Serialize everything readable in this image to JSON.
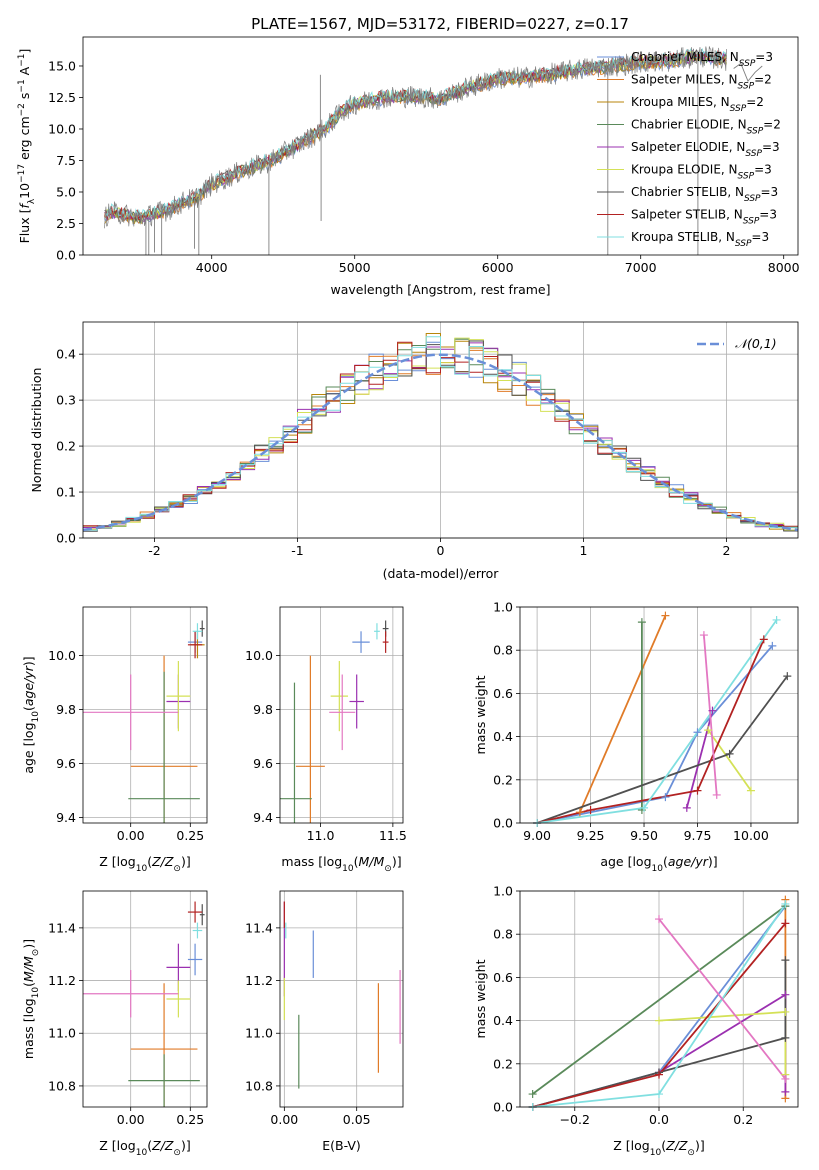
{
  "figure_title": "PLATE=1567, MJD=53172, FIBERID=0227, z=0.17",
  "models": [
    {
      "name": "Chabrier MILES",
      "nssp": "3",
      "color": "#6a8fd8"
    },
    {
      "name": "Salpeter MILES",
      "nssp": "2",
      "color": "#e07b28"
    },
    {
      "name": "Kroupa MILES",
      "nssp": "2",
      "color": "#b8860b"
    },
    {
      "name": "Chabrier ELODIE",
      "nssp": "2",
      "color": "#5a8a5a"
    },
    {
      "name": "Salpeter ELODIE",
      "nssp": "3",
      "color": "#9b30b0"
    },
    {
      "name": "Kroupa ELODIE",
      "nssp": "3",
      "color": "#d4e157"
    },
    {
      "name": "Chabrier STELIB",
      "nssp": "3",
      "color": "#505050"
    },
    {
      "name": "Salpeter STELIB",
      "nssp": "3",
      "color": "#b22222"
    },
    {
      "name": "Kroupa STELIB",
      "nssp": "3",
      "color": "#80dfe0"
    }
  ],
  "chart_data": [
    {
      "id": "spectrum",
      "type": "line",
      "xlabel": "wavelength [Angstrom, rest frame]",
      "ylabel": "Flux [f_λ 10^-17 erg cm^-2 s^-1 A^-1]",
      "xlim": [
        3100,
        8100
      ],
      "ylim": [
        0,
        17.3
      ],
      "xticks": [
        4000,
        5000,
        6000,
        7000,
        8000
      ],
      "yticks": [
        0.0,
        2.5,
        5.0,
        7.5,
        10.0,
        12.5,
        15.0
      ],
      "grid": false,
      "legend": "right",
      "data_color": "#808080",
      "continuum": {
        "x": [
          3250,
          3300,
          3400,
          3500,
          3600,
          3700,
          3800,
          3900,
          4000,
          4200,
          4400,
          4600,
          4800,
          4900,
          5000,
          5200,
          5400,
          5600,
          5800,
          6000,
          6200,
          6400,
          6600,
          6800,
          7000,
          7200,
          7400,
          7600
        ],
        "y": [
          3.0,
          3.4,
          3.2,
          2.9,
          3.3,
          3.6,
          4.2,
          4.6,
          5.6,
          6.6,
          7.4,
          8.7,
          10.1,
          11.3,
          12.0,
          12.5,
          12.6,
          12.4,
          13.3,
          14.0,
          14.1,
          14.4,
          14.8,
          15.0,
          15.3,
          15.4,
          15.8,
          15.5
        ]
      },
      "spikes": [
        {
          "x": 3540,
          "y": 0.0
        },
        {
          "x": 3560,
          "y": 0.0
        },
        {
          "x": 3600,
          "y": 0.2
        },
        {
          "x": 3650,
          "y": 0.0
        },
        {
          "x": 3880,
          "y": 0.5
        },
        {
          "x": 3910,
          "y": 0.0
        },
        {
          "x": 4400,
          "y": 0.0
        },
        {
          "x": 4760,
          "y": 14.3
        },
        {
          "x": 4765,
          "y": 2.7
        },
        {
          "x": 6770,
          "y": 0.0
        },
        {
          "x": 7400,
          "y": 0.0
        }
      ],
      "tail": {
        "x": [
          7650,
          7700,
          7750,
          7800,
          7850
        ],
        "y": [
          14.8,
          15.2,
          13.8,
          14.5,
          15.0
        ]
      }
    },
    {
      "id": "residuals",
      "type": "bar",
      "xlabel": "(data-model)/error",
      "ylabel": "Normed distribution",
      "xlim": [
        -2.5,
        2.5
      ],
      "ylim": [
        0,
        0.47
      ],
      "xticks": [
        -2,
        -1,
        0,
        1,
        2
      ],
      "yticks": [
        0.0,
        0.1,
        0.2,
        0.3,
        0.4
      ],
      "grid": true,
      "legend": "top-right",
      "reference_curve": {
        "name": "𝒩(0,1)",
        "style": "dashed",
        "color": "#6a8fd8",
        "mu": 0,
        "sigma": 1
      },
      "bin_width": 0.1
    },
    {
      "id": "age_vs_Z",
      "type": "scatter",
      "xlabel": "Z [log10(Z/Z⊙)]",
      "ylabel": "age  [log10(age/yr)]",
      "xlim": [
        -0.2,
        0.32
      ],
      "ylim": [
        9.38,
        10.18
      ],
      "xticks": [
        0.0,
        0.25
      ],
      "xtick_labels": [
        "0.00",
        "0.25"
      ],
      "yticks": [
        9.4,
        9.6,
        9.8,
        10.0
      ],
      "grid": true,
      "points": [
        {
          "model": 0,
          "x": 0.27,
          "y": 10.05,
          "xerr": 0.03,
          "yerr": 0.04
        },
        {
          "model": 1,
          "x": 0.14,
          "y": 9.59,
          "xerr": 0.14,
          "yerr": 0.41
        },
        {
          "model": 2,
          "x": 0.28,
          "y": 10.04,
          "xerr": 0.03,
          "yerr": 0.05
        },
        {
          "model": 3,
          "x": 0.14,
          "y": 9.47,
          "xerr": 0.15,
          "yerr": 0.47
        },
        {
          "model": 4,
          "x": 0.2,
          "y": 9.83,
          "xerr": 0.05,
          "yerr": 0.1
        },
        {
          "model": 5,
          "x": 0.2,
          "y": 9.85,
          "xerr": 0.05,
          "yerr": 0.13
        },
        {
          "model": 6,
          "x": 0.3,
          "y": 10.1,
          "xerr": 0.01,
          "yerr": 0.03
        },
        {
          "model": 7,
          "x": 0.27,
          "y": 10.04,
          "xerr": 0.03,
          "yerr": 0.05
        },
        {
          "model": 8,
          "x": 0.28,
          "y": 10.09,
          "xerr": 0.02,
          "yerr": 0.03
        },
        {
          "model": 2,
          "x": 0.0,
          "y": 9.79,
          "xerr": 0.2,
          "yerr": 0.14,
          "color": "#e377c2"
        }
      ]
    },
    {
      "id": "age_vs_mass",
      "type": "scatter",
      "xlabel": "mass [log10(M/M⊙)]",
      "ylabel": "",
      "xlim": [
        10.72,
        11.57
      ],
      "ylim": [
        9.38,
        10.18
      ],
      "xticks": [
        11.0,
        11.5
      ],
      "xtick_labels": [
        "11.0",
        "11.5"
      ],
      "yticks": [
        9.4,
        9.6,
        9.8,
        10.0
      ],
      "grid": true,
      "points": [
        {
          "model": 0,
          "x": 11.28,
          "y": 10.05,
          "xerr": 0.06,
          "yerr": 0.04
        },
        {
          "model": 1,
          "x": 10.93,
          "y": 9.59,
          "xerr": 0.1,
          "yerr": 0.41
        },
        {
          "model": 3,
          "x": 10.82,
          "y": 9.47,
          "xerr": 0.12,
          "yerr": 0.43
        },
        {
          "model": 4,
          "x": 11.25,
          "y": 9.83,
          "xerr": 0.05,
          "yerr": 0.1
        },
        {
          "model": 5,
          "x": 11.13,
          "y": 9.85,
          "xerr": 0.06,
          "yerr": 0.13
        },
        {
          "model": 6,
          "x": 11.45,
          "y": 10.1,
          "xerr": 0.02,
          "yerr": 0.03
        },
        {
          "model": 7,
          "x": 11.45,
          "y": 10.05,
          "xerr": 0.02,
          "yerr": 0.04
        },
        {
          "model": 8,
          "x": 11.39,
          "y": 10.09,
          "xerr": 0.02,
          "yerr": 0.03
        },
        {
          "model": 2,
          "x": 11.15,
          "y": 9.79,
          "xerr": 0.09,
          "yerr": 0.14,
          "color": "#e377c2"
        }
      ]
    },
    {
      "id": "massweight_vs_age",
      "type": "line",
      "xlabel": "age  [log10(age/yr)]",
      "ylabel": "mass weight",
      "xlim": [
        8.92,
        10.22
      ],
      "ylim": [
        0.0,
        1.0
      ],
      "xticks": [
        9.0,
        9.25,
        9.5,
        9.75,
        10.0
      ],
      "xtick_labels": [
        "9.00",
        "9.25",
        "9.50",
        "9.75",
        "10.00"
      ],
      "yticks": [
        0.0,
        0.2,
        0.4,
        0.6,
        0.8,
        1.0
      ],
      "grid": true,
      "series": [
        {
          "model": 0,
          "x": [
            9.0,
            9.6,
            9.75,
            10.1
          ],
          "y": [
            0.0,
            0.12,
            0.42,
            0.82
          ]
        },
        {
          "model": 1,
          "x": [
            9.2,
            9.6
          ],
          "y": [
            0.05,
            0.96
          ]
        },
        {
          "model": 3,
          "x": [
            9.49,
            9.49
          ],
          "y": [
            0.06,
            0.93
          ]
        },
        {
          "model": 4,
          "x": [
            9.7,
            9.82
          ],
          "y": [
            0.07,
            0.52
          ]
        },
        {
          "model": 5,
          "x": [
            9.8,
            10.0
          ],
          "y": [
            0.43,
            0.15
          ]
        },
        {
          "model": 6,
          "x": [
            9.0,
            9.9,
            10.17
          ],
          "y": [
            0.0,
            0.32,
            0.68
          ]
        },
        {
          "model": 7,
          "x": [
            9.0,
            9.25,
            9.75,
            10.06
          ],
          "y": [
            0.0,
            0.06,
            0.15,
            0.85
          ]
        },
        {
          "model": 8,
          "x": [
            9.0,
            9.5,
            10.12
          ],
          "y": [
            0.0,
            0.07,
            0.94
          ]
        },
        {
          "model": 2,
          "x": [
            9.78,
            9.84
          ],
          "y": [
            0.87,
            0.13
          ],
          "color": "#e377c2"
        }
      ]
    },
    {
      "id": "mass_vs_Z",
      "type": "scatter",
      "xlabel": "Z [log10(Z/Z⊙)]",
      "ylabel": "mass [log10(M/M⊙)]",
      "xlim": [
        -0.2,
        0.32
      ],
      "ylim": [
        10.72,
        11.54
      ],
      "xticks": [
        0.0,
        0.25
      ],
      "xtick_labels": [
        "0.00",
        "0.25"
      ],
      "yticks": [
        10.8,
        11.0,
        11.2,
        11.4
      ],
      "grid": true,
      "points": [
        {
          "model": 0,
          "x": 0.27,
          "y": 11.28,
          "xerr": 0.03,
          "yerr": 0.06
        },
        {
          "model": 1,
          "x": 0.14,
          "y": 10.94,
          "xerr": 0.14,
          "yerr": 0.25
        },
        {
          "model": 3,
          "x": 0.14,
          "y": 10.82,
          "xerr": 0.15,
          "yerr": 0.1
        },
        {
          "model": 4,
          "x": 0.2,
          "y": 11.25,
          "xerr": 0.05,
          "yerr": 0.09
        },
        {
          "model": 5,
          "x": 0.2,
          "y": 11.13,
          "xerr": 0.05,
          "yerr": 0.07
        },
        {
          "model": 6,
          "x": 0.3,
          "y": 11.45,
          "xerr": 0.01,
          "yerr": 0.04
        },
        {
          "model": 7,
          "x": 0.27,
          "y": 11.46,
          "xerr": 0.03,
          "yerr": 0.04
        },
        {
          "model": 8,
          "x": 0.28,
          "y": 11.39,
          "xerr": 0.02,
          "yerr": 0.03
        },
        {
          "model": 2,
          "x": 0.0,
          "y": 11.15,
          "xerr": 0.2,
          "yerr": 0.09,
          "color": "#e377c2"
        }
      ]
    },
    {
      "id": "mass_vs_EBV",
      "type": "scatter",
      "xlabel": "E(B-V)",
      "ylabel": "",
      "xlim": [
        -0.003,
        0.082
      ],
      "ylim": [
        10.72,
        11.54
      ],
      "xticks": [
        0.0,
        0.05
      ],
      "xtick_labels": [
        "0.00",
        "0.05"
      ],
      "yticks": [
        10.8,
        11.0,
        11.2,
        11.4
      ],
      "grid": true,
      "points": [
        {
          "model": 0,
          "x": 0.02,
          "y": 11.3,
          "xerr": 0,
          "yerr": 0.09
        },
        {
          "model": 1,
          "x": 0.065,
          "y": 11.02,
          "xerr": 0,
          "yerr": 0.17
        },
        {
          "model": 3,
          "x": 0.01,
          "y": 10.93,
          "xerr": 0,
          "yerr": 0.14
        },
        {
          "model": 4,
          "x": 0.0,
          "y": 11.32,
          "xerr": 0,
          "yerr": 0.18
        },
        {
          "model": 5,
          "x": 0.0,
          "y": 11.13,
          "xerr": 0,
          "yerr": 0.08
        },
        {
          "model": 7,
          "x": 0.0,
          "y": 11.45,
          "xerr": 0,
          "yerr": 0.05
        },
        {
          "model": 8,
          "x": 0.001,
          "y": 11.39,
          "xerr": 0,
          "yerr": 0.03
        },
        {
          "model": 2,
          "x": 0.08,
          "y": 11.1,
          "xerr": 0,
          "yerr": 0.14,
          "color": "#e377c2"
        }
      ]
    },
    {
      "id": "massweight_vs_Z",
      "type": "line",
      "xlabel": "Z [log10(Z/Z⊙)]",
      "ylabel": "mass weight",
      "xlim": [
        -0.33,
        0.33
      ],
      "ylim": [
        0.0,
        1.0
      ],
      "xticks": [
        -0.2,
        0.0,
        0.2
      ],
      "xtick_labels": [
        "−0.2",
        "0.0",
        "0.2"
      ],
      "yticks": [
        0.0,
        0.2,
        0.4,
        0.6,
        0.8,
        1.0
      ],
      "grid": true,
      "series": [
        {
          "model": 0,
          "x": [
            -0.3,
            0.0,
            0.3
          ],
          "y": [
            0.0,
            0.16,
            0.93
          ]
        },
        {
          "model": 1,
          "x": [
            0.3,
            0.3
          ],
          "y": [
            0.04,
            0.96
          ]
        },
        {
          "model": 3,
          "x": [
            -0.3,
            0.3
          ],
          "y": [
            0.06,
            0.93
          ]
        },
        {
          "model": 4,
          "x": [
            0.0,
            0.3,
            0.3
          ],
          "y": [
            0.16,
            0.52,
            0.07
          ]
        },
        {
          "model": 5,
          "x": [
            0.0,
            0.3,
            0.3
          ],
          "y": [
            0.4,
            0.44,
            0.15
          ]
        },
        {
          "model": 6,
          "x": [
            -0.3,
            0.0,
            0.3,
            0.3
          ],
          "y": [
            0.0,
            0.16,
            0.32,
            0.68
          ]
        },
        {
          "model": 7,
          "x": [
            -0.3,
            0.0,
            0.3
          ],
          "y": [
            0.0,
            0.15,
            0.85
          ]
        },
        {
          "model": 8,
          "x": [
            -0.3,
            0.0,
            0.3
          ],
          "y": [
            0.0,
            0.06,
            0.94
          ]
        },
        {
          "model": 2,
          "x": [
            0.0,
            0.3
          ],
          "y": [
            0.87,
            0.13
          ],
          "color": "#e377c2"
        }
      ]
    }
  ]
}
